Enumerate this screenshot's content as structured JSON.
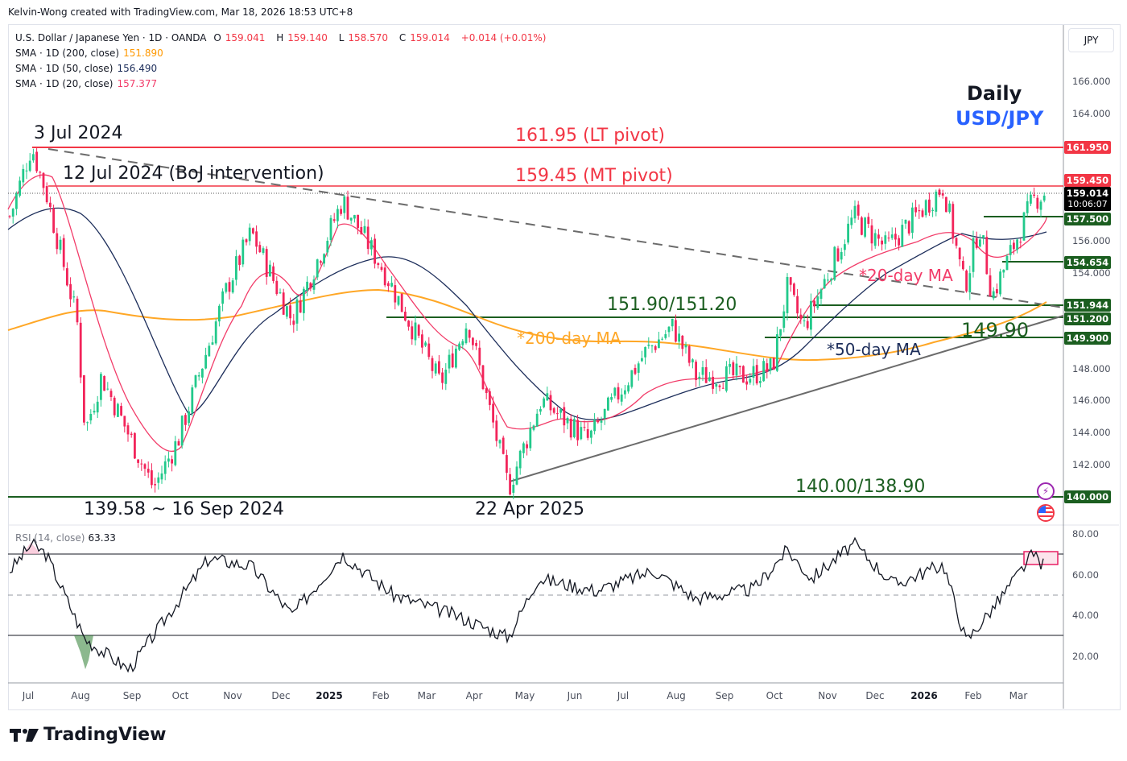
{
  "credit": "Kelvin-Wong created with TradingView.com, Mar 18, 2026 18:53 UTC+8",
  "legend": {
    "symbol": "U.S. Dollar / Japanese Yen · 1D · OANDA",
    "open_label": "O",
    "open": "159.041",
    "high_label": "H",
    "high": "159.140",
    "low_label": "L",
    "low": "158.570",
    "close_label": "C",
    "close": "159.014",
    "change": "+0.014 (+0.01%)",
    "sma200_label": "SMA · 1D (200, close)",
    "sma200": "151.890",
    "sma50_label": "SMA · 1D (50, close)",
    "sma50": "156.490",
    "sma20_label": "SMA · 1D (20, close)",
    "sma20": "157.377"
  },
  "currency_button": "JPY",
  "price_axis": {
    "ticks": [
      "166.000",
      "164.000",
      "156.000",
      "154.000",
      "148.000",
      "146.000",
      "144.000",
      "142.000"
    ],
    "tags": [
      {
        "value": "161.950",
        "color": "red"
      },
      {
        "value": "159.450",
        "color": "red"
      },
      {
        "value": "157.500",
        "color": "green"
      },
      {
        "value": "154.654",
        "color": "green"
      },
      {
        "value": "151.944",
        "color": "green"
      },
      {
        "value": "151.200",
        "color": "green"
      },
      {
        "value": "149.900",
        "color": "green"
      },
      {
        "value": "140.000",
        "color": "green"
      }
    ],
    "last_price": "159.014",
    "countdown": "10:06:07"
  },
  "rsi_axis": {
    "ticks": [
      "80.00",
      "60.00",
      "40.00",
      "20.00"
    ]
  },
  "rsi_legend": {
    "label": "RSI (14, close)",
    "value": "63.33"
  },
  "time_axis": [
    "Jul",
    "Aug",
    "Sep",
    "Oct",
    "Nov",
    "Dec",
    "2025",
    "Feb",
    "Mar",
    "Apr",
    "May",
    "Jun",
    "Jul",
    "Aug",
    "Sep",
    "Oct",
    "Nov",
    "Dec",
    "2026",
    "Feb",
    "Mar"
  ],
  "annotations": {
    "title_daily": "Daily",
    "title_pair": "USD/JPY",
    "jul3": "3 Jul 2024",
    "jul12": "12 Jul 2024 (BoJ intervention)",
    "lt_pivot": "161.95 (LT pivot)",
    "mt_pivot": "159.45 (MT pivot)",
    "support1": "151.90/151.20",
    "support2": "149.90",
    "support3": "140.00/138.90",
    "ma20": "*20-day MA",
    "ma50": "*50-day MA",
    "ma200": "*200-day MA",
    "low_sep": "139.58 ~ 16 Sep 2024",
    "low_apr": "22 Apr 2025"
  },
  "brand": "TradingView",
  "colors": {
    "up": "#22c98b",
    "down": "#f2245a",
    "sma20": "#f23c69",
    "sma50": "#1c2d5a",
    "sma200": "#ffa726",
    "resistance": "#f23645",
    "support": "#1b5e20",
    "accent_blue": "#2962ff"
  },
  "chart_data": {
    "type": "candlestick",
    "title": "USD/JPY Daily",
    "symbol": "U.S. Dollar / Japanese Yen · 1D · OANDA",
    "ylabel": "JPY",
    "ylim": [
      139,
      167
    ],
    "x_range": [
      "Jun 2024",
      "Mar 2026"
    ],
    "months": [
      "Jul",
      "Aug",
      "Sep",
      "Oct",
      "Nov",
      "Dec",
      "2025",
      "Feb",
      "Mar",
      "Apr",
      "May",
      "Jun",
      "Jul",
      "Aug",
      "Sep",
      "Oct",
      "Nov",
      "Dec",
      "2026",
      "Feb",
      "Mar"
    ],
    "close_path": {
      "x": [
        "2024-06",
        "2024-07-03",
        "2024-07-12",
        "2024-07-31",
        "2024-08-05",
        "2024-08-15",
        "2024-09-16",
        "2024-10-01",
        "2024-10-31",
        "2024-11-15",
        "2024-12-10",
        "2025-01-10",
        "2025-02-05",
        "2025-03-11",
        "2025-03-28",
        "2025-04-22",
        "2025-05-12",
        "2025-06-10",
        "2025-07-15",
        "2025-08-01",
        "2025-08-15",
        "2025-09-15",
        "2025-10-01",
        "2025-10-10",
        "2025-10-20",
        "2025-11-20",
        "2025-12-10",
        "2026-01-14",
        "2026-01-27",
        "2026-02-05",
        "2026-02-13",
        "2026-03-10",
        "2026-03-18"
      ],
      "close": [
        157.5,
        161.9,
        159.0,
        151.0,
        144.0,
        147.5,
        140.5,
        143.5,
        153.0,
        156.5,
        151.0,
        158.5,
        154.0,
        147.0,
        151.0,
        140.5,
        146.0,
        143.5,
        149.0,
        150.6,
        147.5,
        147.5,
        148.0,
        153.0,
        150.5,
        157.5,
        155.5,
        159.4,
        153.0,
        157.0,
        152.5,
        158.5,
        159.0
      ]
    },
    "sma": [
      {
        "name": "SMA 200",
        "last": 151.89,
        "color": "#ffa726"
      },
      {
        "name": "SMA 50",
        "last": 156.49,
        "color": "#1c2d5a"
      },
      {
        "name": "SMA 20",
        "last": 157.377,
        "color": "#f23c69"
      }
    ],
    "ohlc_last": {
      "open": 159.041,
      "high": 159.14,
      "low": 158.57,
      "close": 159.014,
      "change": 0.014,
      "change_pct": 0.01
    },
    "horizontal_levels": [
      {
        "value": 161.95,
        "label": "161.95 (LT pivot)",
        "color": "#f23645"
      },
      {
        "value": 159.45,
        "label": "159.45 (MT pivot)",
        "color": "#f23645"
      },
      {
        "value": 157.5,
        "color": "#1b5e20"
      },
      {
        "value": 154.654,
        "color": "#1b5e20"
      },
      {
        "value": 151.944,
        "label": "151.90/151.20",
        "color": "#1b5e20"
      },
      {
        "value": 151.2,
        "color": "#1b5e20"
      },
      {
        "value": 149.9,
        "label": "149.90",
        "color": "#1b5e20"
      },
      {
        "value": 140.0,
        "label": "140.00/138.90",
        "color": "#1b5e20"
      }
    ],
    "trendlines": [
      {
        "name": "descending resistance (dashed)",
        "from": [
          "2024-07-03",
          161.9
        ],
        "to": [
          "2026-03-18",
          151.6
        ]
      },
      {
        "name": "ascending support",
        "from": [
          "2025-04-22",
          140.9
        ],
        "to": [
          "2026-03-18",
          151.3
        ]
      }
    ],
    "annotations": [
      "3 Jul 2024",
      "12 Jul 2024 (BoJ intervention)",
      "139.58 ~ 16 Sep 2024",
      "22 Apr 2025",
      "*20-day MA",
      "*50-day MA",
      "*200-day MA"
    ],
    "rsi": {
      "label": "RSI (14, close)",
      "value": 63.33,
      "ylim": [
        0,
        100
      ],
      "levels": [
        70,
        50,
        30
      ],
      "ticks": [
        80,
        60,
        40,
        20
      ],
      "x": [
        "2024-06",
        "2024-07-03",
        "2024-07-12",
        "2024-08-05",
        "2024-09-01",
        "2024-09-16",
        "2024-10-20",
        "2024-11-15",
        "2024-12-10",
        "2025-01-10",
        "2025-02-10",
        "2025-03-20",
        "2025-04-22",
        "2025-05-10",
        "2025-06-15",
        "2025-07-20",
        "2025-08-15",
        "2025-09-20",
        "2025-10-10",
        "2025-10-25",
        "2025-11-20",
        "2025-12-15",
        "2026-01-14",
        "2026-01-28",
        "2026-02-15",
        "2026-03-10",
        "2026-03-18"
      ],
      "values": [
        62,
        75,
        70,
        28,
        13,
        30,
        68,
        64,
        40,
        70,
        50,
        40,
        29,
        58,
        52,
        62,
        48,
        53,
        72,
        58,
        75,
        55,
        65,
        27,
        45,
        70,
        63.33
      ]
    }
  }
}
